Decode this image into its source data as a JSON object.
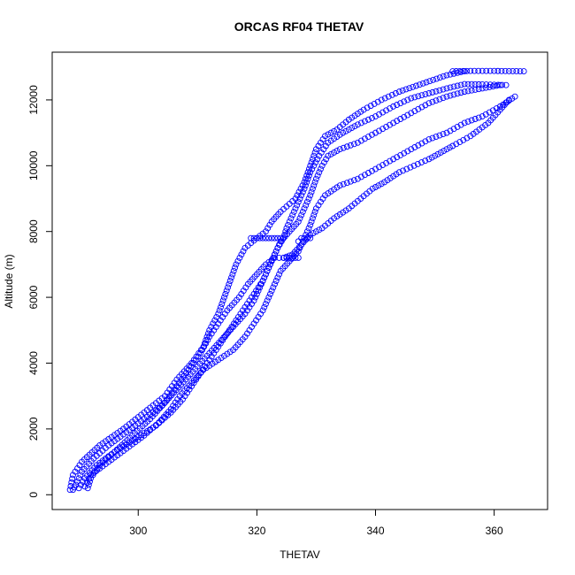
{
  "chart_data": {
    "type": "scatter",
    "title": "ORCAS RF04 THETAV",
    "xlabel": "THETAV",
    "ylabel": "Altitude (m)",
    "xlim": [
      285.5,
      369.0
    ],
    "ylim": [
      -450,
      13450
    ],
    "x_ticks": [
      300,
      320,
      340,
      360
    ],
    "y_ticks": [
      0,
      2000,
      4000,
      6000,
      8000,
      10000,
      12000
    ],
    "grid": false,
    "legend": "none",
    "marker": "open-circle",
    "color": "#0000ff",
    "profiles": [
      [
        [
          288.5,
          150
        ],
        [
          289.0,
          600
        ],
        [
          290.5,
          1000
        ],
        [
          293.5,
          1500
        ],
        [
          297.5,
          2000
        ],
        [
          301.0,
          2500
        ],
        [
          304.5,
          3000
        ],
        [
          306.5,
          3500
        ],
        [
          309.0,
          4000
        ],
        [
          311.0,
          4500
        ],
        [
          312.0,
          5000
        ],
        [
          313.5,
          5500
        ],
        [
          314.5,
          6000
        ],
        [
          315.5,
          6500
        ],
        [
          316.5,
          7000
        ],
        [
          318.0,
          7500
        ],
        [
          320.0,
          7800
        ],
        [
          321.5,
          8000
        ],
        [
          322.5,
          8300
        ],
        [
          324.0,
          8600
        ],
        [
          326.5,
          9000
        ],
        [
          328.0,
          9500
        ],
        [
          329.0,
          10000
        ],
        [
          330.0,
          10500
        ],
        [
          331.5,
          10900
        ],
        [
          333.5,
          11100
        ],
        [
          335.5,
          11400
        ],
        [
          338.0,
          11700
        ],
        [
          341.0,
          12000
        ],
        [
          344.0,
          12250
        ],
        [
          348.0,
          12500
        ],
        [
          352.0,
          12750
        ],
        [
          355.0,
          12870
        ]
      ],
      [
        [
          365.0,
          12870
        ],
        [
          360.0,
          12880
        ],
        [
          356.0,
          12880
        ],
        [
          353.0,
          12870
        ]
      ],
      [
        [
          362.0,
          12450
        ],
        [
          358.0,
          12470
        ],
        [
          355.0,
          12480
        ],
        [
          352.0,
          12350
        ],
        [
          349.0,
          12200
        ],
        [
          346.0,
          12050
        ],
        [
          343.0,
          11800
        ],
        [
          340.0,
          11500
        ],
        [
          337.0,
          11250
        ],
        [
          334.5,
          11000
        ],
        [
          332.0,
          10700
        ],
        [
          330.5,
          10300
        ],
        [
          329.0,
          9800
        ],
        [
          328.0,
          9300
        ],
        [
          327.0,
          8900
        ],
        [
          326.0,
          8500
        ],
        [
          325.0,
          8100
        ],
        [
          324.5,
          7800
        ],
        [
          323.5,
          7500
        ],
        [
          322.5,
          7100
        ],
        [
          321.5,
          6700
        ],
        [
          320.5,
          6300
        ],
        [
          319.5,
          5900
        ],
        [
          318.0,
          5500
        ],
        [
          316.0,
          5100
        ],
        [
          314.0,
          4700
        ],
        [
          312.0,
          4300
        ],
        [
          310.0,
          3900
        ],
        [
          308.0,
          3500
        ],
        [
          306.0,
          3100
        ],
        [
          304.0,
          2700
        ],
        [
          301.0,
          2300
        ],
        [
          298.0,
          1900
        ],
        [
          295.0,
          1500
        ],
        [
          292.5,
          1100
        ],
        [
          290.5,
          700
        ],
        [
          289.5,
          300
        ],
        [
          289.0,
          150
        ]
      ],
      [
        [
          291.5,
          200
        ],
        [
          292.0,
          500
        ],
        [
          293.5,
          900
        ],
        [
          296.0,
          1300
        ],
        [
          299.5,
          1700
        ],
        [
          303.0,
          2100
        ],
        [
          305.5,
          2500
        ],
        [
          307.5,
          2900
        ],
        [
          309.0,
          3300
        ],
        [
          310.5,
          3700
        ],
        [
          312.0,
          4100
        ],
        [
          313.5,
          4500
        ],
        [
          315.0,
          4900
        ],
        [
          316.5,
          5300
        ],
        [
          318.0,
          5700
        ],
        [
          319.5,
          6100
        ],
        [
          321.0,
          6500
        ],
        [
          322.0,
          6900
        ],
        [
          323.0,
          7300
        ],
        [
          324.0,
          7700
        ],
        [
          325.5,
          8000
        ],
        [
          327.0,
          8300
        ],
        [
          328.0,
          8700
        ],
        [
          329.0,
          9100
        ],
        [
          330.0,
          9600
        ],
        [
          331.0,
          10000
        ],
        [
          332.0,
          10300
        ],
        [
          334.0,
          10500
        ],
        [
          337.0,
          10700
        ],
        [
          340.0,
          11000
        ],
        [
          343.0,
          11300
        ],
        [
          346.0,
          11600
        ],
        [
          349.0,
          11900
        ],
        [
          352.0,
          12100
        ],
        [
          355.0,
          12250
        ],
        [
          358.0,
          12350
        ],
        [
          361.0,
          12450
        ]
      ],
      [
        [
          363.5,
          12100
        ],
        [
          361.0,
          11800
        ],
        [
          358.0,
          11500
        ],
        [
          355.0,
          11300
        ],
        [
          352.0,
          11000
        ],
        [
          349.0,
          10800
        ],
        [
          346.0,
          10500
        ],
        [
          343.0,
          10200
        ],
        [
          340.0,
          9900
        ],
        [
          337.0,
          9600
        ],
        [
          334.0,
          9400
        ],
        [
          331.5,
          9100
        ],
        [
          330.0,
          8700
        ],
        [
          329.0,
          8200
        ],
        [
          328.0,
          7800
        ],
        [
          327.0,
          7400
        ],
        [
          325.5,
          7100
        ],
        [
          324.0,
          6800
        ],
        [
          323.0,
          6400
        ],
        [
          322.0,
          6000
        ],
        [
          321.0,
          5600
        ],
        [
          319.5,
          5200
        ],
        [
          318.0,
          4800
        ],
        [
          316.0,
          4400
        ],
        [
          313.5,
          4100
        ],
        [
          311.0,
          3800
        ],
        [
          309.0,
          3400
        ],
        [
          307.0,
          3000
        ],
        [
          305.5,
          2600
        ],
        [
          303.5,
          2200
        ],
        [
          301.0,
          1800
        ],
        [
          298.0,
          1400
        ],
        [
          295.0,
          1000
        ],
        [
          292.0,
          600
        ],
        [
          291.0,
          250
        ]
      ],
      [
        [
          290.0,
          200
        ],
        [
          291.0,
          500
        ],
        [
          293.0,
          900
        ],
        [
          296.0,
          1300
        ],
        [
          299.0,
          1800
        ],
        [
          302.0,
          2300
        ],
        [
          304.5,
          2800
        ],
        [
          306.5,
          3300
        ],
        [
          308.5,
          3800
        ],
        [
          310.5,
          4300
        ],
        [
          312.0,
          4800
        ],
        [
          313.5,
          5200
        ],
        [
          315.0,
          5600
        ],
        [
          317.0,
          6000
        ],
        [
          318.5,
          6400
        ],
        [
          320.0,
          6700
        ],
        [
          321.5,
          7000
        ],
        [
          323.0,
          7200
        ],
        [
          324.5,
          7200
        ],
        [
          326.0,
          7300
        ],
        [
          327.5,
          7600
        ],
        [
          329.0,
          7900
        ],
        [
          331.0,
          8100
        ],
        [
          333.0,
          8400
        ],
        [
          335.5,
          8700
        ],
        [
          337.5,
          9000
        ],
        [
          339.5,
          9300
        ],
        [
          341.5,
          9500
        ],
        [
          344.0,
          9800
        ],
        [
          346.5,
          10000
        ],
        [
          349.0,
          10200
        ],
        [
          351.0,
          10400
        ],
        [
          353.0,
          10600
        ],
        [
          356.0,
          10900
        ],
        [
          359.0,
          11300
        ],
        [
          361.0,
          11700
        ],
        [
          362.5,
          12000
        ]
      ],
      [
        [
          319.0,
          7800
        ],
        [
          320.0,
          7800
        ],
        [
          321.0,
          7800
        ],
        [
          322.0,
          7800
        ],
        [
          323.0,
          7800
        ],
        [
          324.0,
          7800
        ]
      ],
      [
        [
          324.5,
          7200
        ],
        [
          325.5,
          7200
        ],
        [
          326.5,
          7200
        ],
        [
          327.0,
          7200
        ]
      ],
      [
        [
          327.0,
          7700
        ],
        [
          327.5,
          7800
        ],
        [
          328.0,
          7800
        ],
        [
          329.0,
          7800
        ]
      ]
    ]
  }
}
